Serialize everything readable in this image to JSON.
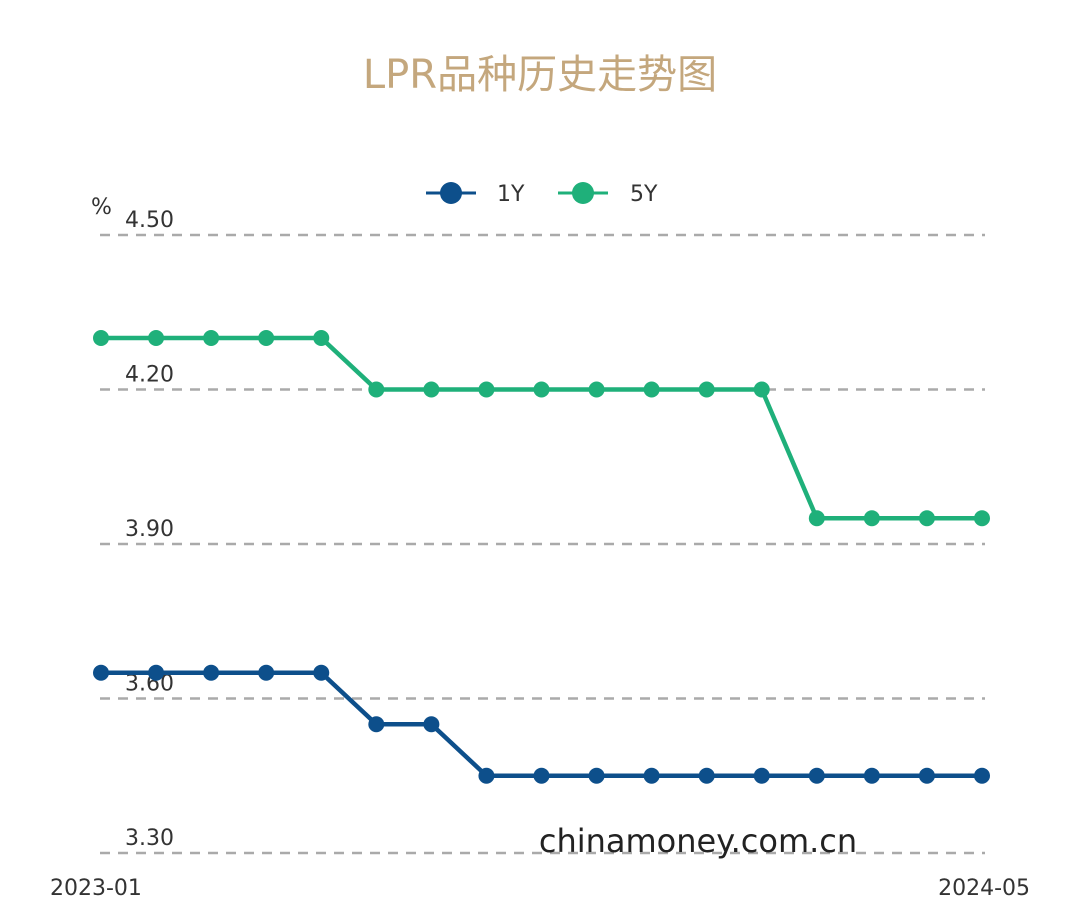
{
  "chart_data": {
    "type": "line",
    "title": "LPR品种历史走势图",
    "ylabel": "%",
    "ylim": [
      3.3,
      4.5
    ],
    "yticks": [
      "4.50",
      "4.20",
      "3.90",
      "3.60",
      "3.30"
    ],
    "ytick_values": [
      4.5,
      4.2,
      3.9,
      3.6,
      3.3
    ],
    "x": [
      "2023-01",
      "2023-02",
      "2023-03",
      "2023-04",
      "2023-05",
      "2023-06",
      "2023-07",
      "2023-08",
      "2023-09",
      "2023-10",
      "2023-11",
      "2023-12",
      "2024-01",
      "2024-02",
      "2024-03",
      "2024-04",
      "2024-05"
    ],
    "x_tick_labels": [
      "2023-01",
      "2024-05"
    ],
    "grid": "horizontal dashed",
    "legend": "top",
    "series": [
      {
        "name": "1Y",
        "color": "#0d4f8b",
        "values": [
          3.65,
          3.65,
          3.65,
          3.65,
          3.65,
          3.55,
          3.55,
          3.45,
          3.45,
          3.45,
          3.45,
          3.45,
          3.45,
          3.45,
          3.45,
          3.45,
          3.45
        ]
      },
      {
        "name": "5Y",
        "color": "#1fb07a",
        "values": [
          4.3,
          4.3,
          4.3,
          4.3,
          4.3,
          4.2,
          4.2,
          4.2,
          4.2,
          4.2,
          4.2,
          4.2,
          4.2,
          3.95,
          3.95,
          3.95,
          3.95
        ]
      }
    ]
  },
  "watermark": "chinamoney.com.cn",
  "colors": {
    "title": "#c4a77d",
    "grid": "#aaaaaa"
  }
}
